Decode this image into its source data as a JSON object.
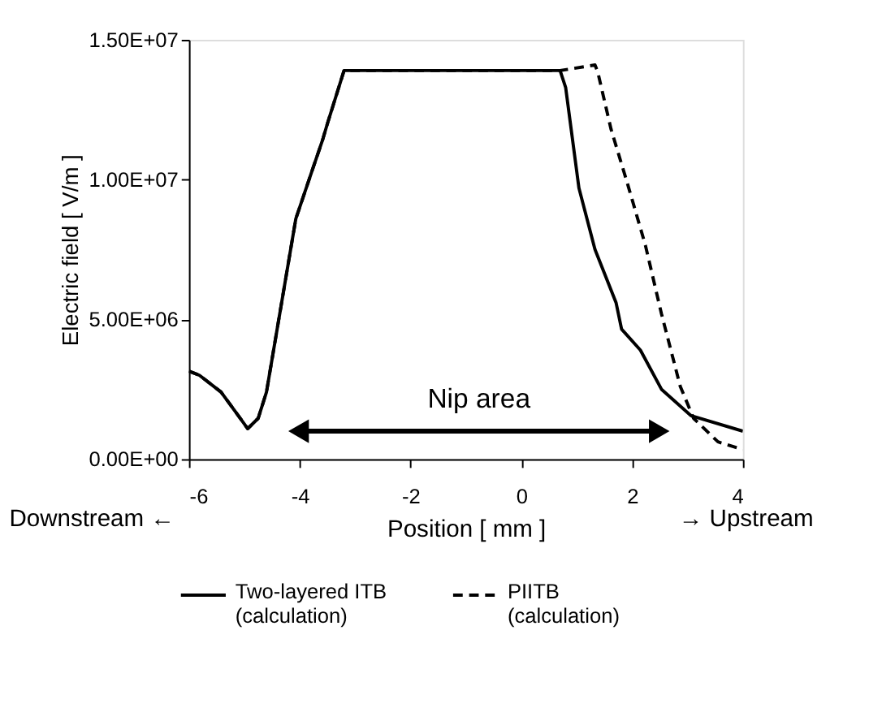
{
  "chart_data": {
    "type": "line",
    "xlabel": "Position [ mm ]",
    "ylabel": "Electric field  [ V/m ]",
    "xlim": [
      -6,
      4
    ],
    "xticks": [
      -6,
      -4,
      -2,
      0,
      2,
      4
    ],
    "ylim": [
      0,
      15000000
    ],
    "yticks": [
      {
        "value": 0,
        "label": "0.00E+00"
      },
      {
        "value": 5000000,
        "label": "5.00E+06"
      },
      {
        "value": 10000000,
        "label": "1.00E+07"
      },
      {
        "value": 15000000,
        "label": "1.50E+07"
      }
    ],
    "grid": false,
    "legend": "bottom",
    "marker": "none",
    "annotations": [
      "Downstream ←",
      "→ Upstream"
    ],
    "series": [
      {
        "name": "Nip area",
        "type": "line",
        "marker": "triangle",
        "color": "#000000",
        "x": [
          -4.02,
          2.49
        ],
        "values": [
          1000000,
          1000000
        ]
      },
      {
        "name": "Two-layered ITB\n(calculation)",
        "color": "#000000",
        "line_style": "solid",
        "x": [
          -6,
          -5.81,
          -5.42,
          -5.04,
          -4.94,
          -4.75,
          -4.6,
          -4.07,
          -3.78,
          -3.59,
          -3.5,
          -3.2,
          -0.6,
          0.7,
          0.8,
          1.04,
          1.33,
          1.71,
          1.81,
          2.15,
          2.53,
          3.06,
          4
        ],
        "values": [
          3150000,
          3000000,
          2400000,
          1370000,
          1090000,
          1460000,
          2400000,
          8600000,
          10300000,
          11400000,
          12000000,
          13900000,
          13900000,
          13900000,
          13300000,
          9700000,
          7500000,
          5600000,
          4650000,
          3900000,
          2500000,
          1560000,
          1000000
        ]
      },
      {
        "name": "PIITB\n(calculation)",
        "color": "#000000",
        "line_style": "dashed",
        "x": [
          -6,
          -5.81,
          -5.42,
          -5.04,
          -4.94,
          -4.75,
          -4.6,
          -4.07,
          -3.78,
          -3.59,
          -3.5,
          -3.2,
          -0.6,
          0.7,
          1.33,
          1.38,
          1.62,
          1.91,
          2.24,
          2.53,
          2.87,
          3.11,
          3.55,
          4
        ],
        "values": [
          3150000,
          3000000,
          2400000,
          1370000,
          1090000,
          1460000,
          2400000,
          8600000,
          10300000,
          11400000,
          12000000,
          13900000,
          13900000,
          13900000,
          14100000,
          13850000,
          11800000,
          9900000,
          7650000,
          5200000,
          2600000,
          1460000,
          620000,
          340000
        ]
      }
    ]
  }
}
